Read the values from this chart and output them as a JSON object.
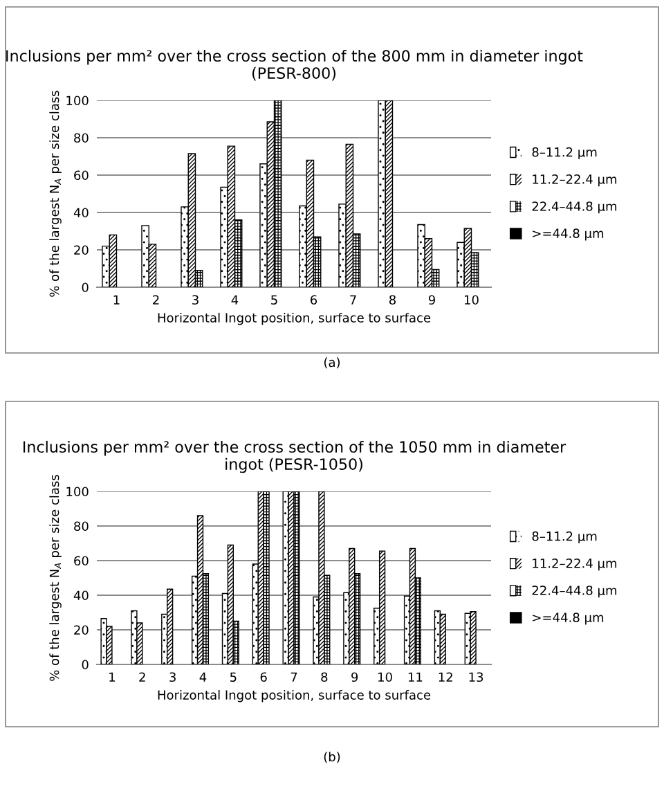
{
  "chart_data": [
    {
      "type": "bar",
      "title": "Inclusions per mm² over the cross section of the 800 mm in diameter ingot (PESR-800)",
      "xlabel": "Horizontal Ingot position, surface to surface",
      "ylabel": "% of the largest N$_{A}$ per size class",
      "categories": [
        "1",
        "2",
        "3",
        "4",
        "5",
        "6",
        "7",
        "8",
        "9",
        "10"
      ],
      "ylim": [
        0,
        100
      ],
      "yticks": [
        0,
        20,
        40,
        60,
        80,
        100
      ],
      "grid": "y",
      "legend": "right",
      "annotations": [
        "(a)"
      ],
      "series": [
        {
          "name": "8–11.2 µm",
          "color": "#ffffff",
          "values": [
            22,
            33,
            43,
            53.5,
            66,
            43.5,
            44.5,
            100,
            33.5,
            24
          ]
        },
        {
          "name": "11.2–22.4 µm",
          "color": "#ffffff",
          "values": [
            28,
            23,
            71.5,
            75.5,
            88.5,
            68,
            76.5,
            100,
            26,
            31.5
          ]
        },
        {
          "name": "22.4–44.8 µm",
          "color": "#ffffff",
          "values": [
            null,
            null,
            9,
            36,
            100,
            27,
            28.5,
            null,
            9.5,
            18.5
          ]
        },
        {
          "name": ">=44.8 µm",
          "color": "#000000",
          "values": [
            null,
            null,
            null,
            null,
            null,
            null,
            null,
            null,
            null,
            null
          ]
        }
      ]
    },
    {
      "type": "bar",
      "title": "Inclusions per mm² over the cross section of the 1050 mm in diameter ingot (PESR-1050)",
      "xlabel": "Horizontal Ingot position, surface to surface",
      "ylabel": "% of the largest N$_{A}$ per size class",
      "categories": [
        "1",
        "2",
        "3",
        "4",
        "5",
        "6",
        "7",
        "8",
        "9",
        "10",
        "11",
        "12",
        "13"
      ],
      "ylim": [
        0,
        100
      ],
      "yticks": [
        0,
        20,
        40,
        60,
        80,
        100
      ],
      "grid": "y",
      "legend": "right",
      "annotations": [
        "(b)"
      ],
      "series": [
        {
          "name": "8–11.2 µm",
          "color": "#ffffff",
          "values": [
            26.5,
            31,
            29,
            51,
            41,
            58,
            100,
            39,
            41.5,
            32.5,
            39.5,
            31,
            29.5
          ]
        },
        {
          "name": "11.2–22.4 µm",
          "color": "#ffffff",
          "values": [
            22,
            24,
            43.5,
            86,
            69,
            100,
            100,
            100,
            67,
            65.5,
            67,
            29,
            30.5
          ]
        },
        {
          "name": "22.4–44.8 µm",
          "color": "#ffffff",
          "values": [
            null,
            null,
            null,
            52.5,
            25,
            100,
            100,
            51.5,
            52.5,
            null,
            50,
            null,
            null
          ]
        },
        {
          "name": ">=44.8 µm",
          "color": "#000000",
          "values": [
            null,
            null,
            null,
            null,
            null,
            null,
            null,
            null,
            null,
            null,
            null,
            null,
            null
          ]
        }
      ]
    }
  ]
}
